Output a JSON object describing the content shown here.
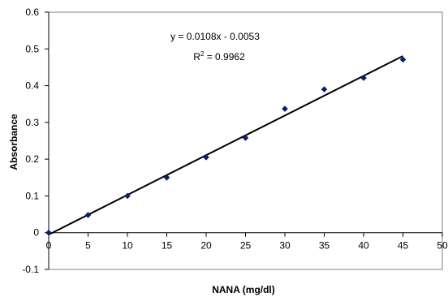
{
  "chart_data": {
    "type": "scatter",
    "xlabel": "NANA (mg/dl)",
    "ylabel": "Absorbance",
    "xlim": [
      0,
      50
    ],
    "ylim": [
      -0.1,
      0.6
    ],
    "x_ticks": [
      0,
      5,
      10,
      15,
      20,
      25,
      30,
      35,
      40,
      45,
      50
    ],
    "y_ticks": [
      -0.1,
      0,
      0.1,
      0.2,
      0.3,
      0.4,
      0.5,
      0.6
    ],
    "x_tick_labels": [
      "0",
      "5",
      "10",
      "15",
      "20",
      "25",
      "30",
      "35",
      "40",
      "45",
      "50"
    ],
    "y_tick_labels": [
      "-0.1",
      "0",
      "0.1",
      "0.2",
      "0.3",
      "0.4",
      "0.5",
      "0.6"
    ],
    "grid": false,
    "marker_color": "#0a1f6b",
    "trendline_color": "#000000",
    "series": [
      {
        "x": [
          0,
          5,
          10,
          15,
          20,
          25,
          30,
          35,
          40,
          45
        ],
        "y": [
          0,
          0.048,
          0.1,
          0.15,
          0.205,
          0.258,
          0.337,
          0.39,
          0.421,
          0.471
        ]
      }
    ],
    "trendline": {
      "type": "linear",
      "slope": 0.0108,
      "intercept": -0.0053,
      "x_range": [
        0,
        45
      ],
      "equation_label": "y = 0.0108x - 0.0053",
      "r2_prefix": "R",
      "r2_sup": "2",
      "r2_value_text": " = 0.9962"
    }
  }
}
